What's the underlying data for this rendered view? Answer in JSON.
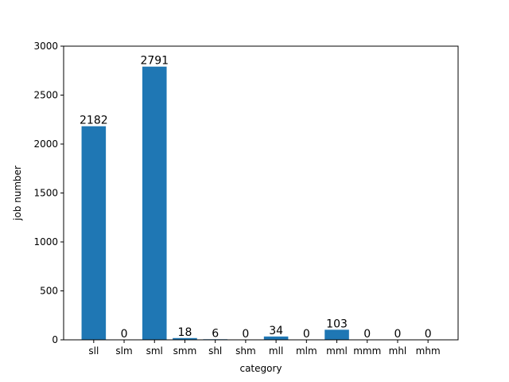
{
  "chart_data": {
    "type": "bar",
    "categories": [
      "sll",
      "slm",
      "sml",
      "smm",
      "shl",
      "shm",
      "mll",
      "mlm",
      "mml",
      "mmm",
      "mhl",
      "mhm"
    ],
    "values": [
      2182,
      0,
      2791,
      18,
      6,
      0,
      34,
      0,
      103,
      0,
      0,
      0
    ],
    "data_labels": [
      "2182",
      "0",
      "2791",
      "18",
      "6",
      "0",
      "34",
      "0",
      "103",
      "0",
      "0",
      "0"
    ],
    "xlabel": "category",
    "ylabel": "job number",
    "ylim": [
      0,
      3000
    ],
    "yticks": [
      0,
      500,
      1000,
      1500,
      2000,
      2500,
      3000
    ],
    "ytick_labels": [
      "0",
      "500",
      "1000",
      "1500",
      "2000",
      "2500",
      "3000"
    ],
    "bar_color": "#1f77b4",
    "grid": false,
    "legend": "none"
  }
}
